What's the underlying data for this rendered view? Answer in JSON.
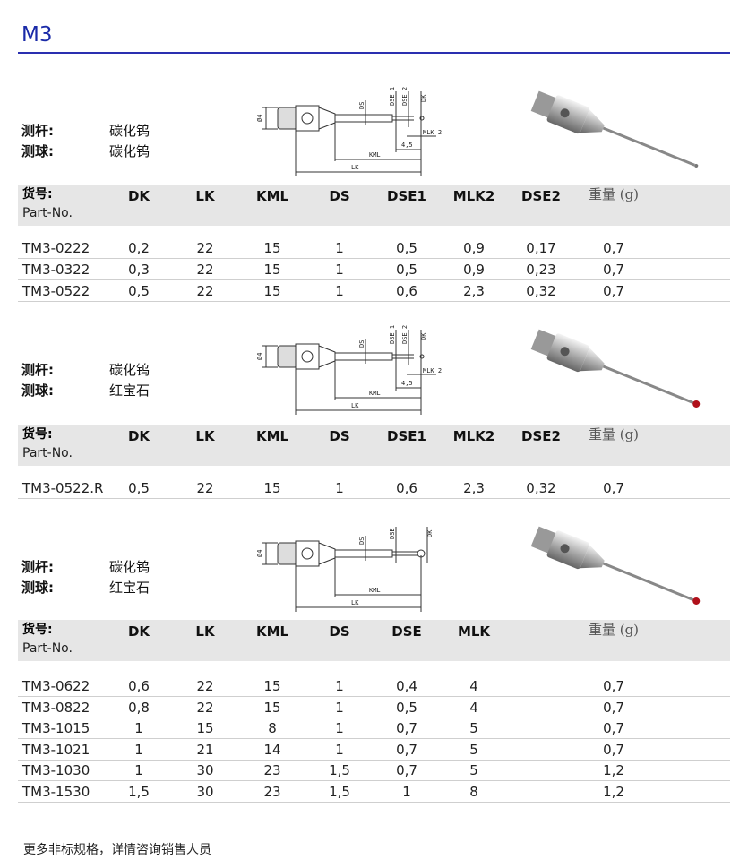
{
  "title": "M3",
  "labels": {
    "stylus": "测杆:",
    "ball": "测球:"
  },
  "header": {
    "part_cn": "货号:",
    "part_en": "Part-No.",
    "weight": "重量 (g)"
  },
  "diagram_labels": {
    "d4": "Ø4",
    "ds": "DS",
    "dse1": "DSE 1",
    "dse2": "DSE 2",
    "dse": "DSE",
    "dk": "DK",
    "mlk2": "MLK 2",
    "d45": "4,5",
    "kml": "KML",
    "lk": "LK"
  },
  "colors": {
    "accent": "#1a2aa8",
    "header_bg": "#e6e6e6",
    "ruby": "#b0101a"
  },
  "sections": [
    {
      "stylus": "碳化钨",
      "ball": "碳化钨",
      "columns": [
        "DK",
        "LK",
        "KML",
        "DS",
        "DSE1",
        "MLK2",
        "DSE2"
      ],
      "rows": [
        [
          "TM3-0222",
          "0,2",
          "22",
          "15",
          "1",
          "0,5",
          "0,9",
          "0,17",
          "0,7"
        ],
        [
          "TM3-0322",
          "0,3",
          "22",
          "15",
          "1",
          "0,5",
          "0,9",
          "0,23",
          "0,7"
        ],
        [
          "TM3-0522",
          "0,5",
          "22",
          "15",
          "1",
          "0,6",
          "2,3",
          "0,32",
          "0,7"
        ]
      ]
    },
    {
      "stylus": "碳化钨",
      "ball": "红宝石",
      "columns": [
        "DK",
        "LK",
        "KML",
        "DS",
        "DSE1",
        "MLK2",
        "DSE2"
      ],
      "rows": [
        [
          "TM3-0522.R",
          "0,5",
          "22",
          "15",
          "1",
          "0,6",
          "2,3",
          "0,32",
          "0,7"
        ]
      ]
    },
    {
      "stylus": "碳化钨",
      "ball": "红宝石",
      "columns": [
        "DK",
        "LK",
        "KML",
        "DS",
        "DSE",
        "MLK",
        ""
      ],
      "rows": [
        [
          "TM3-0622",
          "0,6",
          "22",
          "15",
          "1",
          "0,4",
          "4",
          "",
          "0,7"
        ],
        [
          "TM3-0822",
          "0,8",
          "22",
          "15",
          "1",
          "0,5",
          "4",
          "",
          "0,7"
        ],
        [
          "TM3-1015",
          "1",
          "15",
          "8",
          "1",
          "0,7",
          "5",
          "",
          "0,7"
        ],
        [
          "TM3-1021",
          "1",
          "21",
          "14",
          "1",
          "0,7",
          "5",
          "",
          "0,7"
        ],
        [
          "TM3-1030",
          "1",
          "30",
          "23",
          "1,5",
          "0,7",
          "5",
          "",
          "1,2"
        ],
        [
          "TM3-1530",
          "1,5",
          "30",
          "23",
          "1,5",
          "1",
          "8",
          "",
          "1,2"
        ]
      ]
    }
  ],
  "footer": "更多非标规格，详情咨询销售人员"
}
